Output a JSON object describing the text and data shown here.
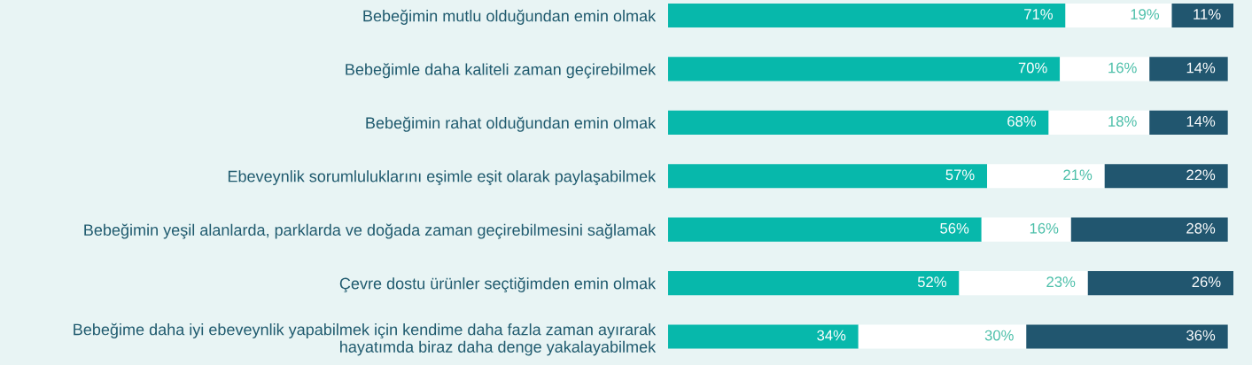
{
  "chart_data": {
    "type": "bar",
    "orientation": "horizontal",
    "stacked": true,
    "xlim": [
      0,
      101
    ],
    "tick_labels": "y",
    "grid": false,
    "categories": [
      "Bebeğimin mutlu olduğundan emin olmak",
      "Bebeğimle daha kaliteli zaman geçirebilmek",
      "Bebeğimin rahat olduğundan emin olmak",
      "Ebeveynlik sorumluluklarını eşimle eşit olarak paylaşabilmek",
      "Bebeğimin yeşil alanlarda, parklarda ve doğada zaman geçirebilmesini sağlamak",
      "Çevre dostu ürünler seçtiğimden emin olmak",
      "Bebeğime daha iyi ebeveynlik yapabilmek için kendime daha fazla zaman ayırarak hayatımda biraz daha denge yakalayabilmek"
    ],
    "series": [
      {
        "color": "#07b8ab",
        "values": [
          71,
          70,
          68,
          57,
          56,
          52,
          34
        ],
        "value_labels": [
          "71%",
          "70%",
          "68%",
          "57%",
          "56%",
          "52%",
          "34%"
        ]
      },
      {
        "color": "#ffffff",
        "values": [
          19,
          16,
          18,
          21,
          16,
          23,
          30
        ],
        "value_labels": [
          "19%",
          "16%",
          "18%",
          "21%",
          "16%",
          "23%",
          "30%"
        ]
      },
      {
        "color": "#21566f",
        "values": [
          11,
          14,
          14,
          22,
          28,
          26,
          36
        ],
        "value_labels": [
          "11%",
          "14%",
          "14%",
          "22%",
          "28%",
          "26%",
          "36%"
        ]
      }
    ]
  }
}
